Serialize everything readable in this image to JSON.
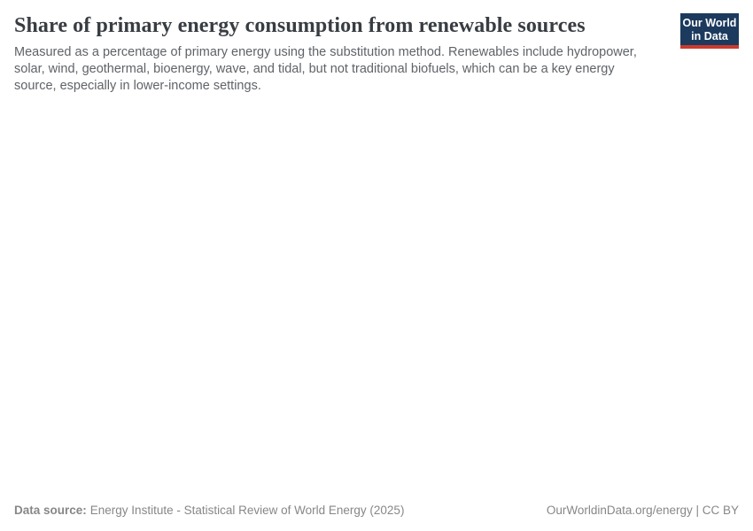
{
  "page": {
    "background_color": "#ffffff"
  },
  "header": {
    "title": "Share of primary energy consumption from renewable sources",
    "subtitle": "Measured as a percentage of primary energy using the substitution method. Renewables include hydropower, solar, wind, geothermal, bioenergy, wave, and tidal, but not traditional biofuels, which can be a key energy source, especially in lower-income settings.",
    "logo": {
      "line1": "Our World",
      "line2": "in Data",
      "background_color": "#1c3a5e",
      "stripe_color": "#cc3a2e",
      "text_color": "#ffffff"
    }
  },
  "chart_data": {
    "type": "line",
    "title": "Share of primary energy consumption from renewable sources",
    "subtitle": "Measured as a percentage of primary energy using the substitution method. Renewables include hydropower, solar, wind, geothermal, bioenergy, wave, and tidal, but not traditional biofuels, which can be a key energy source, especially in lower-income settings.",
    "categories": [],
    "series": [],
    "layout": {
      "plot_area_rendered": false,
      "grid": false,
      "legend": false
    }
  },
  "footer": {
    "data_source_label": "Data source:",
    "data_source_value": "Energy Institute - Statistical Review of World Energy (2025)",
    "credit": "OurWorldinData.org/energy | CC BY"
  },
  "colors": {
    "title": "#383d42",
    "subtitle": "#5f6368",
    "footer_text": "#878787",
    "logo_navy": "#1c3a5e",
    "logo_red": "#cc3a2e"
  }
}
